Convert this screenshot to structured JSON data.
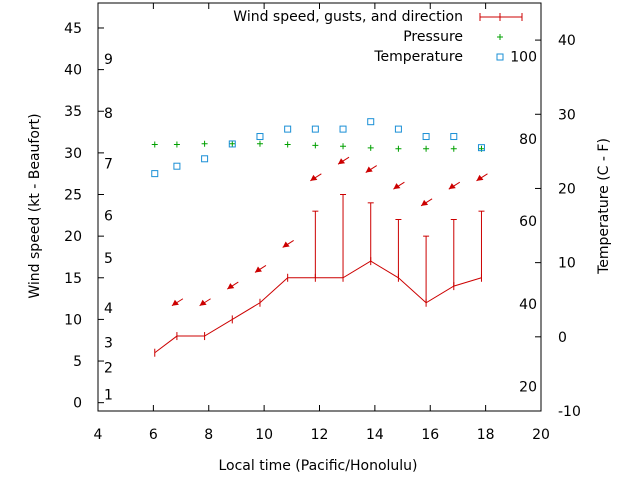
{
  "chart_data": {
    "type": "line",
    "title": "",
    "xlabel": "Local time (Pacific/Honolulu)",
    "ylabel": "Wind speed (kt - Beaufort)",
    "y2label": "Temperature (C - F)",
    "xlim": [
      4,
      20
    ],
    "ylim": [
      -1,
      48
    ],
    "y2lim": [
      -10,
      45
    ],
    "x_ticks": [
      4,
      6,
      8,
      10,
      12,
      14,
      16,
      18,
      20
    ],
    "y_ticks": [
      0,
      5,
      10,
      15,
      20,
      25,
      30,
      35,
      40,
      45
    ],
    "y2_ticks": [
      -10,
      0,
      10,
      20,
      30,
      40
    ],
    "beaufort_labels": [
      {
        "label": "1",
        "y": 1
      },
      {
        "label": "2",
        "y": 4.2
      },
      {
        "label": "3",
        "y": 7.2
      },
      {
        "label": "4",
        "y": 11.4
      },
      {
        "label": "5",
        "y": 17.4
      },
      {
        "label": "6",
        "y": 22.5
      },
      {
        "label": "7",
        "y": 28.7
      },
      {
        "label": "8",
        "y": 34.8
      },
      {
        "label": "9",
        "y": 41.3
      }
    ],
    "fahrenheit_labels": [
      {
        "label": "20",
        "y": -6.7
      },
      {
        "label": "40",
        "y": 4.4
      },
      {
        "label": "60",
        "y": 15.6
      },
      {
        "label": "80",
        "y": 26.7
      },
      {
        "label": "100",
        "y": 37.8
      }
    ],
    "grid": false,
    "legend_position": "top-right",
    "series": [
      {
        "name": "Wind speed, gusts, and direction",
        "color": "#cc0000",
        "x": [
          6.05,
          6.85,
          7.85,
          8.85,
          9.85,
          10.85,
          11.85,
          12.85,
          13.85,
          14.85,
          15.85,
          16.85,
          17.85
        ],
        "values": [
          6,
          8,
          8,
          10,
          12,
          15,
          15,
          15,
          17,
          15,
          12,
          14,
          15
        ],
        "gusts": [
          null,
          null,
          null,
          null,
          null,
          null,
          23,
          25,
          24,
          22,
          20,
          22,
          23
        ],
        "direction_arrows_y": [
          null,
          12,
          12,
          14,
          16,
          19,
          27,
          29,
          28,
          26,
          24,
          26,
          27
        ]
      },
      {
        "name": "Pressure",
        "color": "#00a000",
        "x": [
          6.05,
          6.85,
          7.85,
          8.85,
          9.85,
          10.85,
          11.85,
          12.85,
          13.85,
          14.85,
          15.85,
          16.85,
          17.85
        ],
        "values": [
          31,
          31,
          31.1,
          31.1,
          31.1,
          31,
          30.9,
          30.8,
          30.6,
          30.5,
          30.5,
          30.5,
          30.5
        ]
      },
      {
        "name": "Temperature",
        "color": "#1a8fd6",
        "axis": "y2",
        "x": [
          6.05,
          6.85,
          7.85,
          8.85,
          9.85,
          10.85,
          11.85,
          12.85,
          13.85,
          14.85,
          15.85,
          16.85,
          17.85
        ],
        "values": [
          22,
          23,
          24,
          26,
          27,
          28,
          28,
          28,
          29,
          28,
          27,
          27,
          25.5
        ]
      }
    ]
  }
}
